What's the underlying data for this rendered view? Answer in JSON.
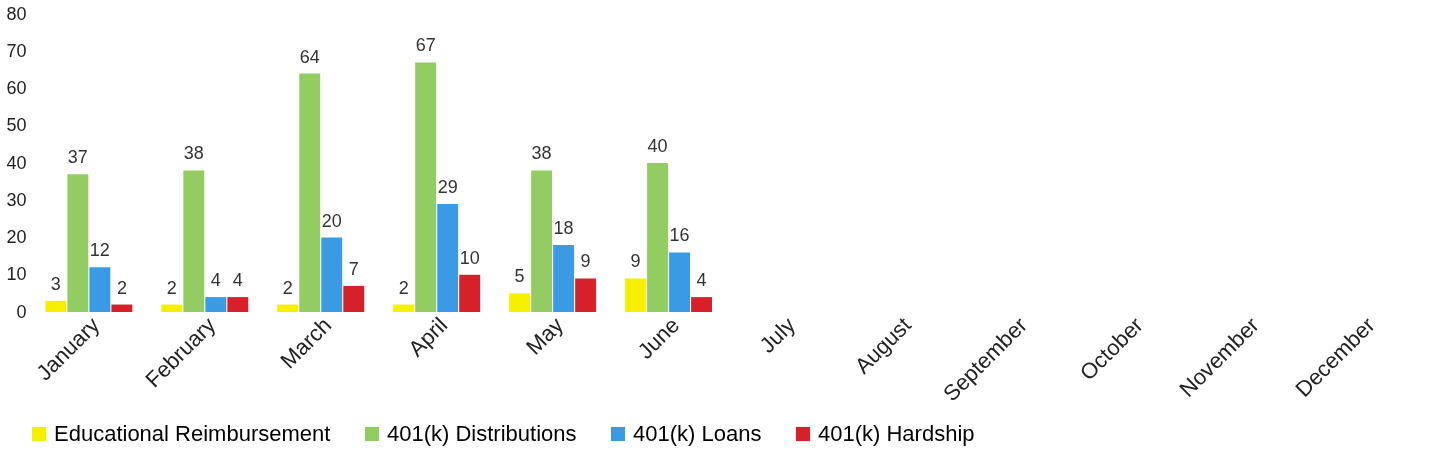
{
  "chart_data": {
    "type": "bar",
    "categories": [
      "January",
      "February",
      "March",
      "April",
      "May",
      "June",
      "July",
      "August",
      "September",
      "October",
      "November",
      "December"
    ],
    "series": [
      {
        "name": "Educational Reimbursement",
        "color": "#f5f000",
        "values": [
          3,
          2,
          2,
          2,
          5,
          9,
          null,
          null,
          null,
          null,
          null,
          null
        ]
      },
      {
        "name": "401(k) Distributions",
        "color": "#92cc62",
        "values": [
          37,
          38,
          64,
          67,
          38,
          40,
          null,
          null,
          null,
          null,
          null,
          null
        ]
      },
      {
        "name": "401(k) Loans",
        "color": "#3a9be4",
        "values": [
          12,
          4,
          20,
          29,
          18,
          16,
          null,
          null,
          null,
          null,
          null,
          null
        ]
      },
      {
        "name": "401(k) Hardship",
        "color": "#d6202a",
        "values": [
          2,
          4,
          7,
          10,
          9,
          4,
          null,
          null,
          null,
          null,
          null,
          null
        ]
      }
    ],
    "ylim": [
      0,
      80
    ],
    "yticks": [
      0,
      10,
      20,
      30,
      40,
      50,
      60,
      70,
      80
    ],
    "data_labels": true,
    "legend": "bottom",
    "grid": false
  }
}
